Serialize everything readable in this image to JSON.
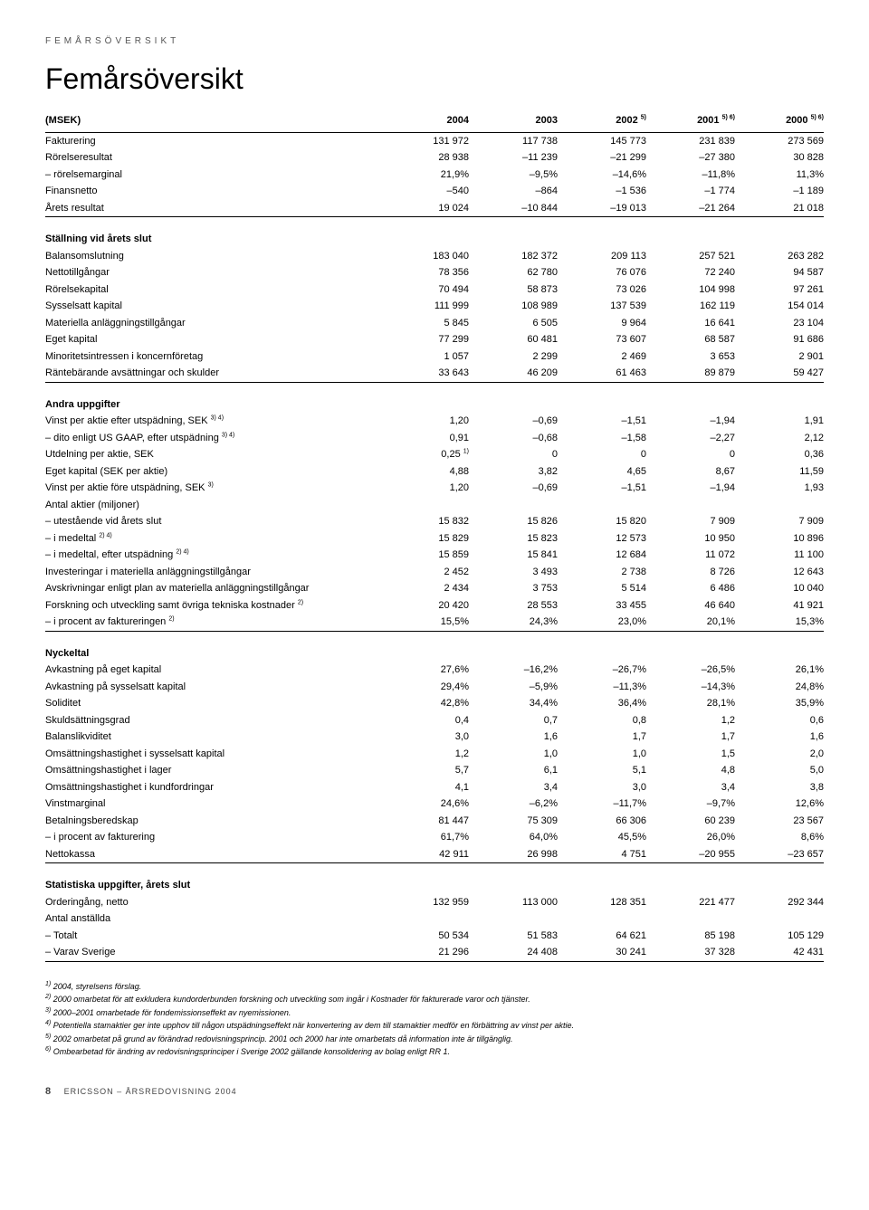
{
  "eyebrow": "FEMÅRSÖVERSIKT",
  "title": "Femårsöversikt",
  "colhead": {
    "unit": "(MSEK)",
    "y2004": "2004",
    "y2003": "2003",
    "y2002": "2002 ",
    "y2002s": "5)",
    "y2001": "2001 ",
    "y2001s": "5) 6)",
    "y2000": "2000 ",
    "y2000s": "5) 6)"
  },
  "top": [
    {
      "label": "Fakturering",
      "v": [
        "131 972",
        "117 738",
        "145 773",
        "231 839",
        "273 569"
      ]
    },
    {
      "label": "Rörelseresultat",
      "v": [
        "28 938",
        "–11 239",
        "–21 299",
        "–27 380",
        "30 828"
      ]
    },
    {
      "label": "– rörelsemarginal",
      "v": [
        "21,9%",
        "–9,5%",
        "–14,6%",
        "–11,8%",
        "11,3%"
      ]
    },
    {
      "label": "Finansnetto",
      "v": [
        "–540",
        "–864",
        "–1 536",
        "–1 774",
        "–1 189"
      ]
    },
    {
      "label": "Årets resultat",
      "v": [
        "19 024",
        "–10 844",
        "–19 013",
        "–21 264",
        "21 018"
      ]
    }
  ],
  "s1head": "Ställning vid årets slut",
  "s1": [
    {
      "label": "Balansomslutning",
      "v": [
        "183 040",
        "182 372",
        "209 113",
        "257 521",
        "263 282"
      ]
    },
    {
      "label": "Nettotillgångar",
      "v": [
        "78 356",
        "62 780",
        "76 076",
        "72 240",
        "94 587"
      ]
    },
    {
      "label": "Rörelsekapital",
      "v": [
        "70 494",
        "58 873",
        "73 026",
        "104 998",
        "97 261"
      ]
    },
    {
      "label": "Sysselsatt kapital",
      "v": [
        "111 999",
        "108 989",
        "137 539",
        "162 119",
        "154 014"
      ]
    },
    {
      "label": "Materiella anläggningstillgångar",
      "v": [
        "5 845",
        "6 505",
        "9 964",
        "16 641",
        "23 104"
      ]
    },
    {
      "label": "Eget kapital",
      "v": [
        "77 299",
        "60 481",
        "73 607",
        "68 587",
        "91 686"
      ]
    },
    {
      "label": "Minoritetsintressen i koncernföretag",
      "v": [
        "1 057",
        "2 299",
        "2 469",
        "3 653",
        "2 901"
      ]
    },
    {
      "label": "Räntebärande avsättningar och skulder",
      "v": [
        "33 643",
        "46 209",
        "61 463",
        "89 879",
        "59 427"
      ]
    }
  ],
  "s2head": "Andra uppgifter",
  "s2": [
    {
      "label": "Vinst per aktie efter utspädning, SEK ",
      "sup": "3) 4)",
      "v": [
        "1,20",
        "–0,69",
        "–1,51",
        "–1,94",
        "1,91"
      ]
    },
    {
      "label": "– dito enligt US GAAP, efter utspädning ",
      "sup": "3) 4)",
      "v": [
        "0,91",
        "–0,68",
        "–1,58",
        "–2,27",
        "2,12"
      ]
    },
    {
      "label": "Utdelning per aktie, SEK",
      "v0": "0,25 ",
      "v0s": "1)",
      "v": [
        "",
        "0",
        "0",
        "0",
        "0,36"
      ]
    },
    {
      "label": "Eget kapital (SEK per aktie)",
      "v": [
        "4,88",
        "3,82",
        "4,65",
        "8,67",
        "11,59"
      ]
    },
    {
      "label": "Vinst per aktie före utspädning, SEK ",
      "sup": "3)",
      "v": [
        "1,20",
        "–0,69",
        "–1,51",
        "–1,94",
        "1,93"
      ]
    },
    {
      "label": "Antal aktier (miljoner)",
      "v": [
        "",
        "",
        "",
        "",
        ""
      ]
    },
    {
      "label": "– utestående vid årets slut",
      "v": [
        "15 832",
        "15 826",
        "15 820",
        "7 909",
        "7 909"
      ]
    },
    {
      "label": "– i medeltal ",
      "sup": "2) 4)",
      "v": [
        "15 829",
        "15 823",
        "12 573",
        "10 950",
        "10 896"
      ]
    },
    {
      "label": "– i medeltal, efter utspädning ",
      "sup": "2) 4)",
      "v": [
        "15 859",
        "15 841",
        "12 684",
        "11 072",
        "11 100"
      ]
    },
    {
      "label": "Investeringar i materiella anläggningstillgångar",
      "v": [
        "2 452",
        "3 493",
        "2 738",
        "8 726",
        "12 643"
      ]
    },
    {
      "label": "Avskrivningar enligt plan av materiella anläggningstillgångar",
      "v": [
        "2 434",
        "3 753",
        "5 514",
        "6 486",
        "10 040"
      ]
    },
    {
      "label": "Forskning och utveckling samt övriga tekniska kostnader ",
      "sup": "2)",
      "v": [
        "20 420",
        "28 553",
        "33 455",
        "46 640",
        "41 921"
      ]
    },
    {
      "label": "– i procent av faktureringen ",
      "sup": "2)",
      "v": [
        "15,5%",
        "24,3%",
        "23,0%",
        "20,1%",
        "15,3%"
      ]
    }
  ],
  "s3head": "Nyckeltal",
  "s3": [
    {
      "label": "Avkastning på eget kapital",
      "v": [
        "27,6%",
        "–16,2%",
        "–26,7%",
        "–26,5%",
        "26,1%"
      ]
    },
    {
      "label": "Avkastning på sysselsatt kapital",
      "v": [
        "29,4%",
        "–5,9%",
        "–11,3%",
        "–14,3%",
        "24,8%"
      ]
    },
    {
      "label": "Soliditet",
      "v": [
        "42,8%",
        "34,4%",
        "36,4%",
        "28,1%",
        "35,9%"
      ]
    },
    {
      "label": "Skuldsättningsgrad",
      "v": [
        "0,4",
        "0,7",
        "0,8",
        "1,2",
        "0,6"
      ]
    },
    {
      "label": "Balanslikviditet",
      "v": [
        "3,0",
        "1,6",
        "1,7",
        "1,7",
        "1,6"
      ]
    },
    {
      "label": "Omsättningshastighet i sysselsatt kapital",
      "v": [
        "1,2",
        "1,0",
        "1,0",
        "1,5",
        "2,0"
      ]
    },
    {
      "label": "Omsättningshastighet i lager",
      "v": [
        "5,7",
        "6,1",
        "5,1",
        "4,8",
        "5,0"
      ]
    },
    {
      "label": "Omsättningshastighet i kundfordringar",
      "v": [
        "4,1",
        "3,4",
        "3,0",
        "3,4",
        "3,8"
      ]
    },
    {
      "label": "Vinstmarginal",
      "v": [
        "24,6%",
        "–6,2%",
        "–11,7%",
        "–9,7%",
        "12,6%"
      ]
    },
    {
      "label": "Betalningsberedskap",
      "v": [
        "81 447",
        "75 309",
        "66 306",
        "60 239",
        "23 567"
      ]
    },
    {
      "label": "– i procent av fakturering",
      "v": [
        "61,7%",
        "64,0%",
        "45,5%",
        "26,0%",
        "8,6%"
      ]
    },
    {
      "label": "Nettokassa",
      "v": [
        "42 911",
        "26 998",
        "4 751",
        "–20 955",
        "–23 657"
      ]
    }
  ],
  "s4head": "Statistiska uppgifter, årets slut",
  "s4": [
    {
      "label": "Orderingång, netto",
      "v": [
        "132 959",
        "113 000",
        "128 351",
        "221 477",
        "292 344"
      ]
    },
    {
      "label": "Antal anställda",
      "v": [
        "",
        "",
        "",
        "",
        ""
      ]
    },
    {
      "label": "– Totalt",
      "v": [
        "50 534",
        "51 583",
        "64 621",
        "85 198",
        "105 129"
      ]
    },
    {
      "label": "– Varav Sverige",
      "v": [
        "21 296",
        "24 408",
        "30 241",
        "37 328",
        "42 431"
      ]
    }
  ],
  "footnotes": [
    {
      "n": "1)",
      "t": "2004, styrelsens förslag."
    },
    {
      "n": "2)",
      "t": "2000 omarbetat för att exkludera kundorderbunden forskning och utveckling som ingår i Kostnader för fakturerade varor och tjänster."
    },
    {
      "n": "3)",
      "t": "2000–2001 omarbetade för fondemissionseffekt av nyemissionen."
    },
    {
      "n": "4)",
      "t": "Potentiella stamaktier ger inte upphov till någon utspädningseffekt när konvertering av dem till stamaktier medför en förbättring av vinst per aktie."
    },
    {
      "n": "5)",
      "t": "2002 omarbetat på grund av förändrad redovisningsprincip. 2001 och 2000 har inte omarbetats då information inte är tillgänglig."
    },
    {
      "n": "6)",
      "t": "Ombearbetad för ändring av redovisningsprinciper i Sverige 2002 gällande konsolidering av bolag enligt RR 1."
    }
  ],
  "footer": {
    "pagenum": "8",
    "text": "ERICSSON – ÅRSREDOVISNING 2004"
  }
}
